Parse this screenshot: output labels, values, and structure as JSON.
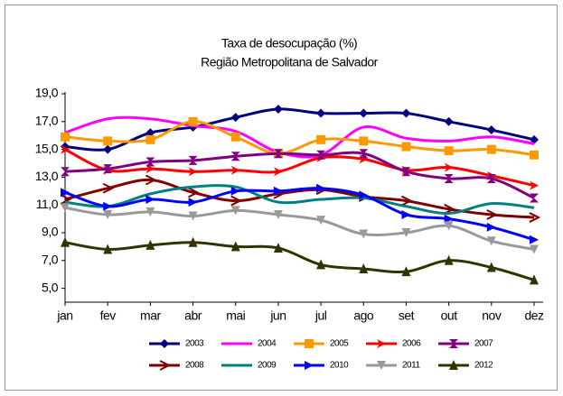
{
  "chart_data": {
    "type": "line",
    "title": "Taxa de desocupação (%)",
    "subtitle": "Região Metropolitana de Salvador",
    "categories": [
      "jan",
      "fev",
      "mar",
      "abr",
      "mai",
      "jun",
      "jul",
      "ago",
      "set",
      "out",
      "nov",
      "dez"
    ],
    "ylim": [
      4,
      19
    ],
    "yticks": [
      {
        "value": 5,
        "label": "5,0"
      },
      {
        "value": 7,
        "label": "7,0"
      },
      {
        "value": 9,
        "label": "9,0"
      },
      {
        "value": 11,
        "label": "11,0"
      },
      {
        "value": 13,
        "label": "13,0"
      },
      {
        "value": 15,
        "label": "15,0"
      },
      {
        "value": 17,
        "label": "17,0"
      },
      {
        "value": 19,
        "label": "19,0"
      }
    ],
    "grid": false,
    "smooth": true,
    "legend": "bottom",
    "series": [
      {
        "name": "2003",
        "color": "#000080",
        "marker": "diamond",
        "values": [
          15.2,
          15.0,
          16.2,
          16.6,
          17.3,
          17.9,
          17.6,
          17.6,
          17.6,
          17.0,
          16.4,
          15.7
        ]
      },
      {
        "name": "2004",
        "color": "#ff00ff",
        "marker": "none",
        "values": [
          16.2,
          17.2,
          17.2,
          16.7,
          16.3,
          14.8,
          14.6,
          16.6,
          15.8,
          15.6,
          15.9,
          15.4
        ]
      },
      {
        "name": "2005",
        "color": "#ff9900",
        "marker": "square",
        "values": [
          15.9,
          15.6,
          15.7,
          17.0,
          15.9,
          14.7,
          15.7,
          15.6,
          15.2,
          14.9,
          15.0,
          14.6
        ]
      },
      {
        "name": "2006",
        "color": "#ff0000",
        "marker": "arrow",
        "values": [
          15.0,
          13.5,
          13.6,
          13.4,
          13.5,
          13.4,
          14.4,
          14.3,
          13.5,
          13.7,
          13.1,
          12.4
        ]
      },
      {
        "name": "2007",
        "color": "#800080",
        "marker": "hourglass",
        "values": [
          13.4,
          13.6,
          14.1,
          14.2,
          14.5,
          14.7,
          14.6,
          14.7,
          13.4,
          12.9,
          12.9,
          11.5
        ]
      },
      {
        "name": "2008",
        "color": "#800000",
        "marker": "chevron",
        "values": [
          11.4,
          12.2,
          12.8,
          11.9,
          11.3,
          11.8,
          12.1,
          11.6,
          11.3,
          10.7,
          10.3,
          10.1
        ]
      },
      {
        "name": "2009",
        "color": "#008080",
        "marker": "none",
        "values": [
          11.2,
          10.9,
          11.8,
          12.3,
          12.3,
          11.2,
          11.4,
          11.5,
          10.9,
          10.4,
          11.1,
          10.8
        ]
      },
      {
        "name": "2010",
        "color": "#0000ff",
        "marker": "triangle-right",
        "values": [
          11.9,
          10.9,
          11.4,
          11.2,
          12.0,
          12.0,
          12.2,
          11.7,
          10.3,
          10.0,
          9.4,
          8.5
        ]
      },
      {
        "name": "2011",
        "color": "#999999",
        "marker": "triangle-down",
        "values": [
          10.8,
          10.3,
          10.5,
          10.2,
          10.6,
          10.3,
          9.9,
          8.9,
          9.0,
          9.5,
          8.4,
          7.8
        ]
      },
      {
        "name": "2012",
        "color": "#333300",
        "marker": "triangle-up",
        "values": [
          8.3,
          7.8,
          8.1,
          8.3,
          8.0,
          7.9,
          6.7,
          6.4,
          6.2,
          7.0,
          6.5,
          5.6
        ]
      }
    ]
  }
}
